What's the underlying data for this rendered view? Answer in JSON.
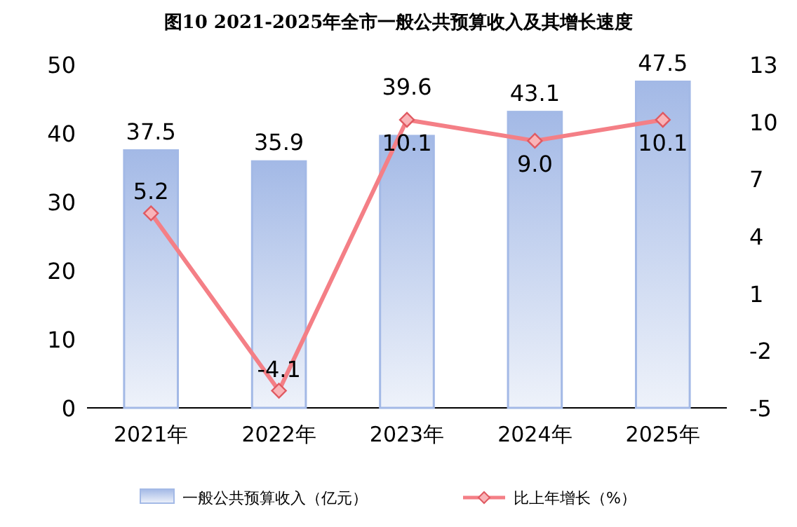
{
  "chart_data": {
    "type": "bar",
    "title": "图10  2021-2025年全市一般公共预算收入及其增长速度",
    "categories": [
      "2021年",
      "2022年",
      "2023年",
      "2024年",
      "2025年"
    ],
    "series": [
      {
        "name": "一般公共预算收入（亿元）",
        "color": "#a3b9e6",
        "values": [
          37.5,
          35.9,
          39.6,
          43.1,
          47.5
        ]
      },
      {
        "name": "比上年增长（%）",
        "type": "line",
        "axis": "y2",
        "color": "#f47f86",
        "values": [
          5.2,
          -4.1,
          10.1,
          9.0,
          10.1
        ],
        "value_labels": [
          "5.2",
          "-4.1",
          "10.1",
          "9.0",
          "10.1"
        ]
      }
    ],
    "ylim": [
      0,
      50
    ],
    "yticks": [
      0,
      10,
      20,
      30,
      40,
      50
    ],
    "y2lim": [
      -5,
      13
    ],
    "y2ticks": [
      -5,
      -2,
      1,
      4,
      7,
      10,
      13
    ],
    "data_labels": true,
    "legend": "bottom",
    "marker": "diamond"
  }
}
